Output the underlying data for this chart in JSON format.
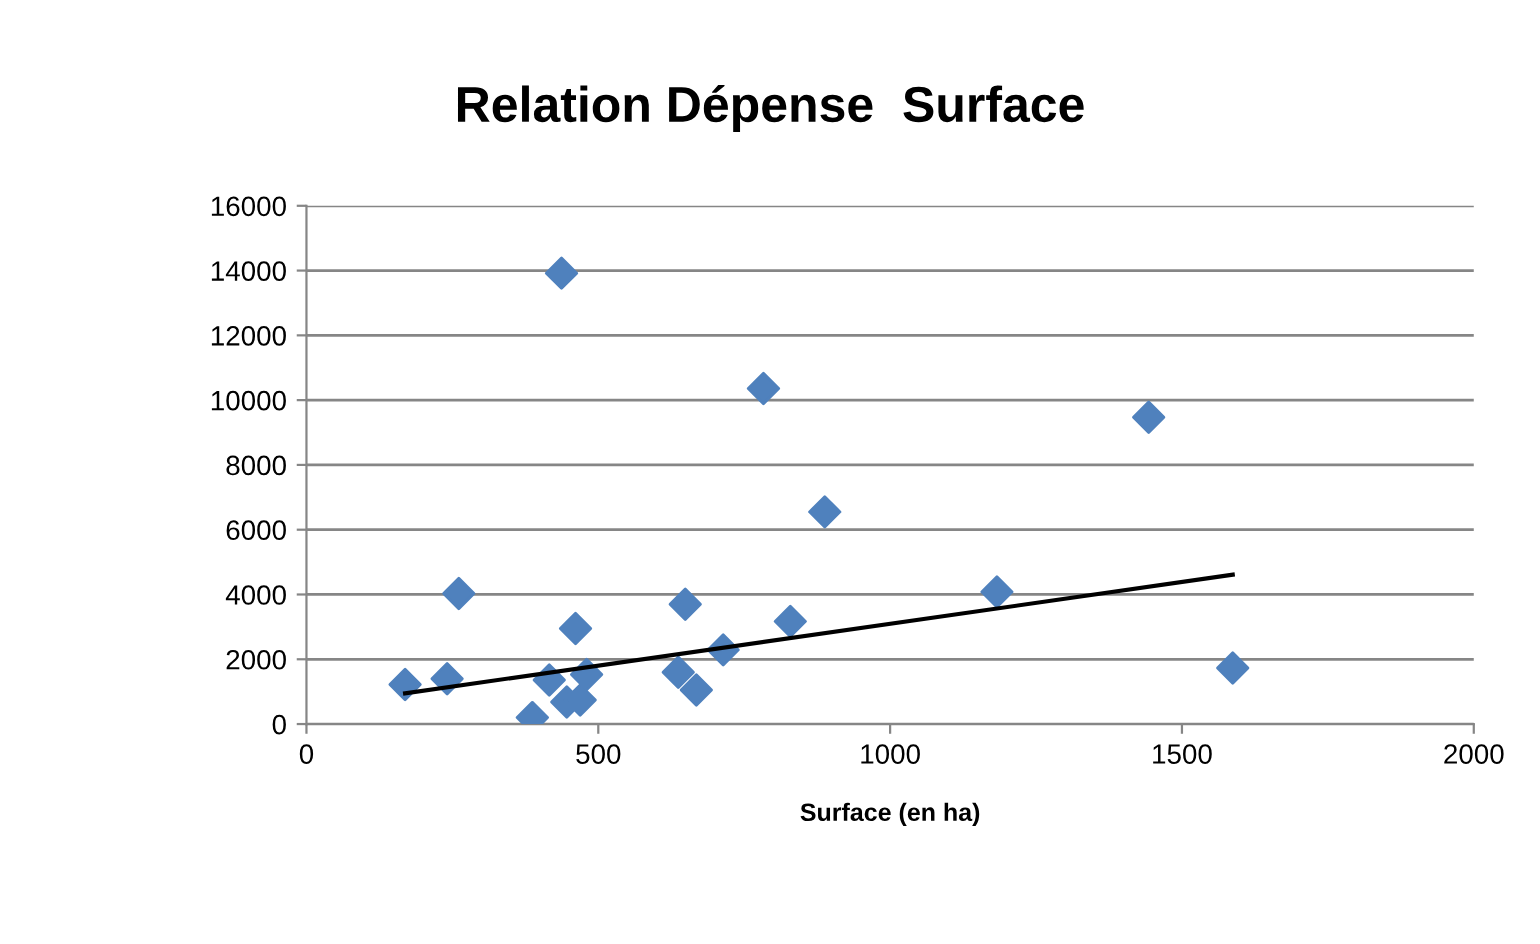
{
  "chart_data": {
    "type": "scatter",
    "title": "Relation Dépense  Surface",
    "xlabel": "Surface (en ha)",
    "xlim": [
      0,
      2000
    ],
    "xticks": [
      0,
      500,
      1000,
      1500,
      2000
    ],
    "ylim": [
      0,
      16000
    ],
    "yticks": [
      0,
      2000,
      4000,
      6000,
      8000,
      10000,
      12000,
      14000,
      16000
    ],
    "grid": "y",
    "marker": "diamond",
    "series": [
      {
        "color": "#4f81bd",
        "x": [
          169,
          241,
          261,
          387,
          416,
          437,
          446,
          461,
          469,
          480,
          637,
          649,
          668,
          714,
          783,
          829,
          888,
          1183,
          1443,
          1587
        ],
        "values": [
          1220,
          1400,
          4030,
          200,
          1360,
          13920,
          680,
          2950,
          740,
          1530,
          1600,
          3700,
          1050,
          2290,
          10360,
          3170,
          6550,
          4080,
          9470,
          1730
        ]
      },
      {
        "type": "line",
        "color": "#000000",
        "marker": "none",
        "line_style": "solid",
        "x": [
          169,
          1587
        ],
        "values": [
          950,
          4610
        ]
      }
    ]
  }
}
